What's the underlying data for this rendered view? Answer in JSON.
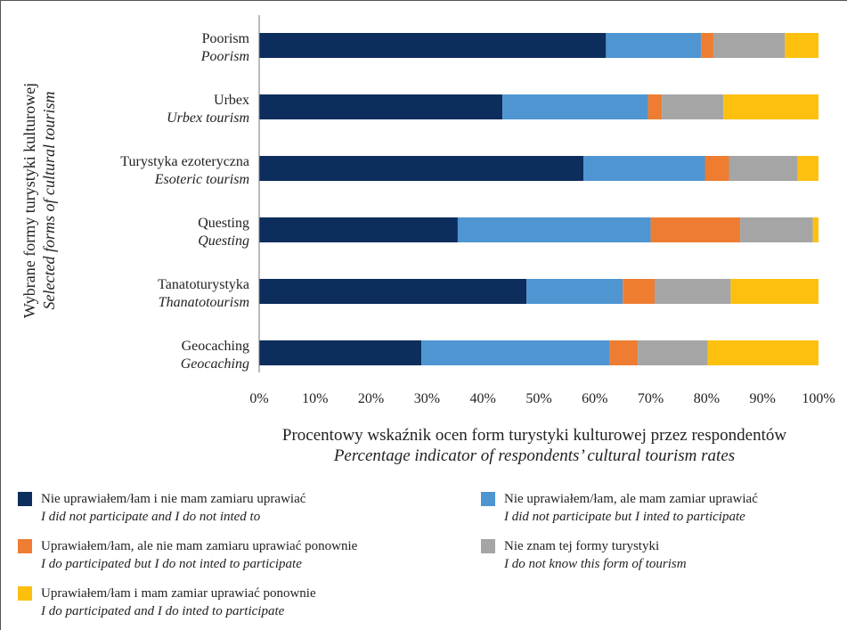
{
  "chart_data": {
    "type": "bar",
    "orientation": "horizontal",
    "stacked": true,
    "categories": [
      {
        "pl": "Poorism",
        "en": "Poorism"
      },
      {
        "pl": "Urbex",
        "en": "Urbex tourism"
      },
      {
        "pl": "Turystyka ezoteryczna",
        "en": "Esoteric tourism"
      },
      {
        "pl": "Questing",
        "en": "Questing"
      },
      {
        "pl": "Tanatoturystyka",
        "en": "Thanatotourism"
      },
      {
        "pl": "Geocaching",
        "en": "Geocaching"
      }
    ],
    "series": [
      {
        "pl": "Nie uprawiałem/łam i nie mam zamiaru uprawiać",
        "en": "I did not participate and I do not inted to",
        "color": "#0d2d5c",
        "values": [
          62,
          43.5,
          58,
          35.5,
          47.8,
          29
        ]
      },
      {
        "pl": "Nie uprawiałem/łam, ale mam zamiar uprawiać",
        "en": "I did not participate but I inted to participate",
        "color": "#4e95d2",
        "values": [
          17,
          26,
          21.7,
          34.5,
          17.2,
          33.7
        ]
      },
      {
        "pl": "Uprawiałem/łam, ale nie mam zamiaru uprawiać ponownie",
        "en": "I do participated but I do not inted to participate",
        "color": "#ee7d31",
        "values": [
          2.2,
          2.5,
          4.3,
          16,
          5.7,
          5
        ]
      },
      {
        "pl": "Nie znam tej formy turystyki",
        "en": "I do not know this form of tourism",
        "color": "#a5a5a5",
        "values": [
          12.8,
          11,
          12.3,
          13,
          13.6,
          12.5
        ]
      },
      {
        "pl": "Uprawiałem/łam i mam zamiar uprawiać ponownie",
        "en": "I do participated and I do inted to participate",
        "color": "#fec00f",
        "values": [
          6,
          17,
          3.7,
          1,
          15.7,
          19.8
        ]
      }
    ],
    "xlim": [
      0,
      100
    ],
    "xticks": [
      "0%",
      "10%",
      "20%",
      "30%",
      "40%",
      "50%",
      "60%",
      "70%",
      "80%",
      "90%",
      "100%"
    ],
    "xlabel": {
      "pl": "Procentowy wskaźnik ocen form turystyki kulturowej przez respondentów",
      "en": "Percentage indicator of respondents’ cultural tourism rates"
    },
    "ylabel": {
      "pl": "Wybrane formy turystyki kulturowej",
      "en": "Selected forms of cultural tourism"
    },
    "grid": false,
    "legend_position": "bottom"
  }
}
